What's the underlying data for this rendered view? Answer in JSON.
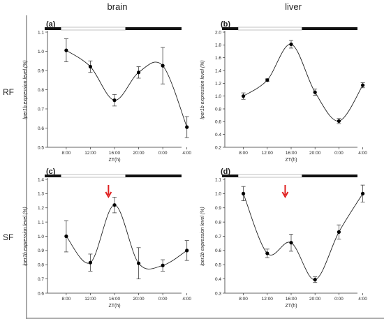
{
  "figure": {
    "col_titles": [
      "brain",
      "liver"
    ],
    "row_titles": [
      "RF",
      "SF"
    ]
  },
  "chart_data": [
    {
      "type": "line",
      "panel_label": "(a)",
      "title": "",
      "xlabel": "ZT(h)",
      "ylabel": "lper1b expression level (%)",
      "categories": [
        "8:00",
        "12:00",
        "16:00",
        "20:00",
        "0:00",
        "4:00"
      ],
      "values": [
        1.005,
        0.92,
        0.745,
        0.89,
        0.925,
        0.605
      ],
      "errors": [
        0.06,
        0.03,
        0.03,
        0.03,
        0.095,
        0.055
      ],
      "ylim": [
        0.5,
        1.1
      ],
      "yticks": [
        "0.5",
        "0.6",
        "0.7",
        "0.8",
        "0.9",
        "1.0",
        "1.1"
      ],
      "light_bar": {
        "dark_start": 0.0,
        "dark_end": 0.12,
        "dark2_start": 0.59,
        "dark2_end": 1.0
      }
    },
    {
      "type": "line",
      "panel_label": "(b)",
      "title": "",
      "xlabel": "ZT(h)",
      "ylabel": "lper1b expression level (%)",
      "categories": [
        "8:00",
        "12:00",
        "16:00",
        "20:00",
        "0:00",
        "4:00"
      ],
      "values": [
        1.0,
        1.25,
        1.81,
        1.06,
        0.61,
        1.17
      ],
      "errors": [
        0.05,
        0.02,
        0.06,
        0.05,
        0.04,
        0.04
      ],
      "ylim": [
        0.2,
        2.0
      ],
      "yticks": [
        "0.2",
        "0.4",
        "0.6",
        "0.8",
        "1.0",
        "1.2",
        "1.4",
        "1.6",
        "1.8",
        "2.0"
      ],
      "light_bar": {
        "dark_start": 0.0,
        "dark_end": 0.12,
        "dark2_start": 0.59,
        "dark2_end": 1.0
      }
    },
    {
      "type": "line",
      "panel_label": "(c)",
      "title": "",
      "xlabel": "ZT(h)",
      "ylabel": "lper1b expression level (%)",
      "categories": [
        "8:00",
        "12:00",
        "16:00",
        "20:00",
        "0:00",
        "4:00"
      ],
      "values": [
        1.0,
        0.815,
        1.22,
        0.81,
        0.795,
        0.9
      ],
      "errors": [
        0.11,
        0.06,
        0.055,
        0.11,
        0.04,
        0.07
      ],
      "ylim": [
        0.6,
        1.4
      ],
      "yticks": [
        "0.6",
        "0.7",
        "0.8",
        "0.9",
        "1.0",
        "1.1",
        "1.2",
        "1.3",
        "1.4"
      ],
      "arrow_at": 1.75,
      "light_bar": {
        "dark_start": 0.0,
        "dark_end": 0.12,
        "dark2_start": 0.59,
        "dark2_end": 1.0
      }
    },
    {
      "type": "line",
      "panel_label": "(d)",
      "title": "",
      "xlabel": "ZT(h)",
      "ylabel": "lper1b expression level (%)",
      "categories": [
        "8:00",
        "12:00",
        "16:00",
        "20:00",
        "0:00",
        "4:00"
      ],
      "values": [
        1.0,
        0.58,
        0.655,
        0.395,
        0.73,
        1.0
      ],
      "errors": [
        0.05,
        0.03,
        0.06,
        0.02,
        0.05,
        0.06
      ],
      "ylim": [
        0.3,
        1.1
      ],
      "yticks": [
        "0.3",
        "0.4",
        "0.5",
        "0.6",
        "0.7",
        "0.8",
        "0.9",
        "1.0",
        "1.1"
      ],
      "arrow_at": 1.75,
      "light_bar": {
        "dark_start": 0.0,
        "dark_end": 0.12,
        "dark2_start": 0.59,
        "dark2_end": 1.0
      }
    }
  ]
}
